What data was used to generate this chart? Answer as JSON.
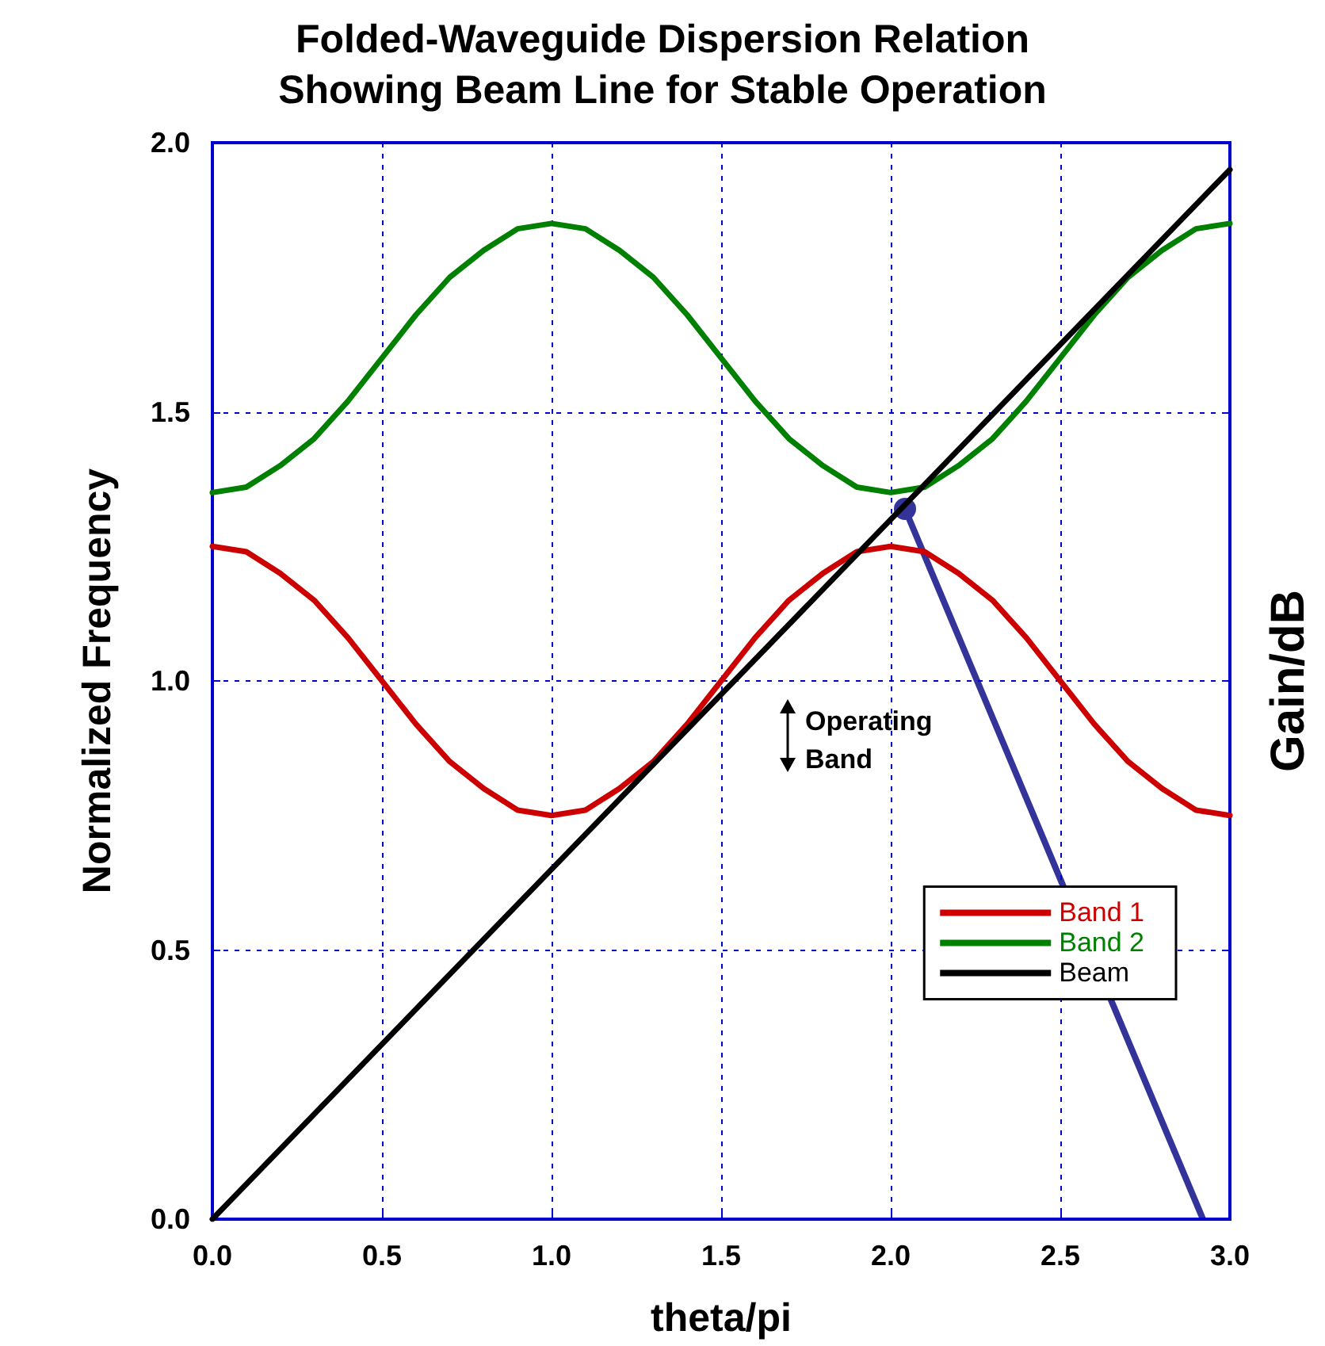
{
  "chart_data": {
    "type": "line",
    "title": "Folded-Waveguide Dispersion Relation\nShowing Beam Line for Stable Operation",
    "xlabel": "theta/pi",
    "ylabel": "Normalized Frequency",
    "y2label": "Gain/dB",
    "annotations": [
      "Operating Band"
    ],
    "x": [
      0,
      0.1,
      0.2,
      0.3,
      0.4,
      0.5,
      0.6,
      0.7,
      0.8,
      0.9,
      1.0,
      1.1,
      1.2,
      1.3,
      1.4,
      1.5,
      1.6,
      1.7,
      1.8,
      1.9,
      2.0,
      2.1,
      2.2,
      2.3,
      2.4,
      2.5,
      2.6,
      2.7,
      2.8,
      2.9,
      3.0
    ],
    "series": [
      {
        "name": "Band 1",
        "color": "#cc0000",
        "values": [
          1.25,
          1.24,
          1.2,
          1.15,
          1.08,
          1.0,
          0.92,
          0.85,
          0.8,
          0.76,
          0.75,
          0.76,
          0.8,
          0.85,
          0.92,
          1.0,
          1.08,
          1.15,
          1.2,
          1.24,
          1.25,
          1.24,
          1.2,
          1.15,
          1.08,
          1.0,
          0.92,
          0.85,
          0.8,
          0.76,
          0.75
        ]
      },
      {
        "name": "Band 2",
        "color": "#008000",
        "values": [
          1.35,
          1.36,
          1.4,
          1.45,
          1.52,
          1.6,
          1.68,
          1.75,
          1.8,
          1.84,
          1.85,
          1.84,
          1.8,
          1.75,
          1.68,
          1.6,
          1.52,
          1.45,
          1.4,
          1.36,
          1.35,
          1.36,
          1.4,
          1.45,
          1.52,
          1.6,
          1.68,
          1.75,
          1.8,
          1.84,
          1.85
        ]
      },
      {
        "name": "Beam",
        "color": "#000000",
        "x": [
          0,
          3.0
        ],
        "values": [
          0,
          1.95
        ]
      }
    ],
    "xlim": [
      0,
      3.0
    ],
    "xticks": [
      {
        "value": 0,
        "label": "0.0"
      },
      0.5,
      {
        "value": 1,
        "label": "1.0"
      },
      1.5,
      {
        "value": 2,
        "label": "2.0"
      },
      2.5,
      {
        "value": 3,
        "label": "3.0"
      }
    ],
    "ylim": [
      0,
      2.0
    ],
    "yticks": [
      {
        "value": 0,
        "label": "0.0"
      },
      0.5,
      {
        "value": 1,
        "label": "1.0"
      },
      1.5,
      {
        "value": 2,
        "label": "2.0"
      }
    ],
    "grid": true,
    "legend": "right",
    "marker": "none",
    "line_style": "solid"
  }
}
